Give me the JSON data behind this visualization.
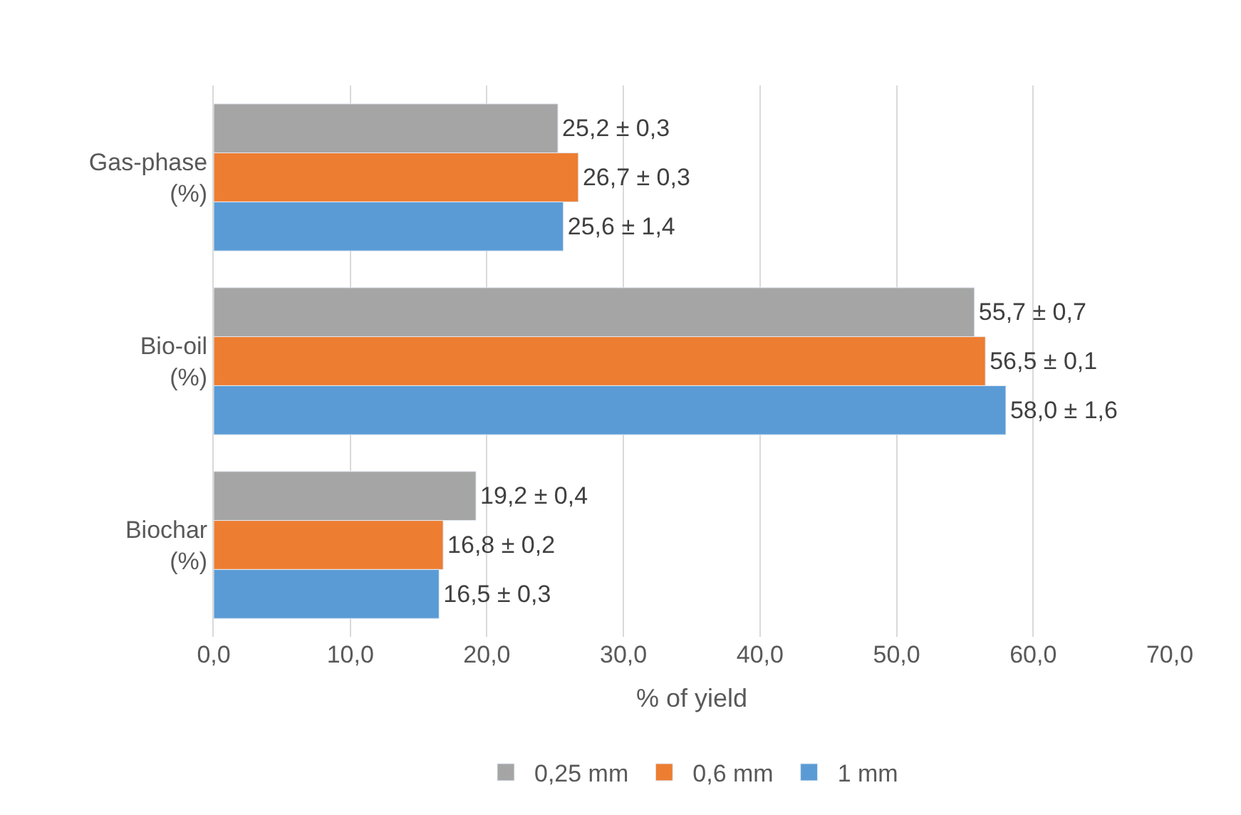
{
  "chart_data": {
    "type": "bar",
    "orientation": "horizontal",
    "xlabel": "% of yield",
    "categories": [
      "Gas-phase (%)",
      "Bio-oil (%)",
      "Biochar (%)"
    ],
    "series": [
      {
        "name": "0,25 mm",
        "color": "#a5a5a5",
        "values": [
          25.2,
          55.7,
          19.2
        ],
        "value_labels": [
          "25,2 ± 0,3",
          "55,7 ± 0,7",
          "19,2 ± 0,4"
        ]
      },
      {
        "name": "0,6 mm",
        "color": "#ed7d31",
        "values": [
          26.7,
          56.5,
          16.8
        ],
        "value_labels": [
          "26,7 ± 0,3",
          "56,5 ± 0,1",
          "16,8 ± 0,2"
        ]
      },
      {
        "name": "1 mm",
        "color": "#5b9bd5",
        "values": [
          25.6,
          58.0,
          16.5
        ],
        "value_labels": [
          "25,6 ± 1,4",
          "58,0 ± 1,6",
          "16,5 ± 0,3"
        ]
      }
    ],
    "xlim": [
      0,
      70
    ],
    "xticks": [
      {
        "value": 0,
        "label": "0,0"
      },
      {
        "value": 10,
        "label": "10,0"
      },
      {
        "value": 20,
        "label": "20,0"
      },
      {
        "value": 30,
        "label": "30,0"
      },
      {
        "value": 40,
        "label": "40,0"
      },
      {
        "value": 50,
        "label": "50,0"
      },
      {
        "value": 60,
        "label": "60,0"
      },
      {
        "value": 70,
        "label": "70,0"
      }
    ],
    "grid": "x",
    "legend": "bottom"
  }
}
